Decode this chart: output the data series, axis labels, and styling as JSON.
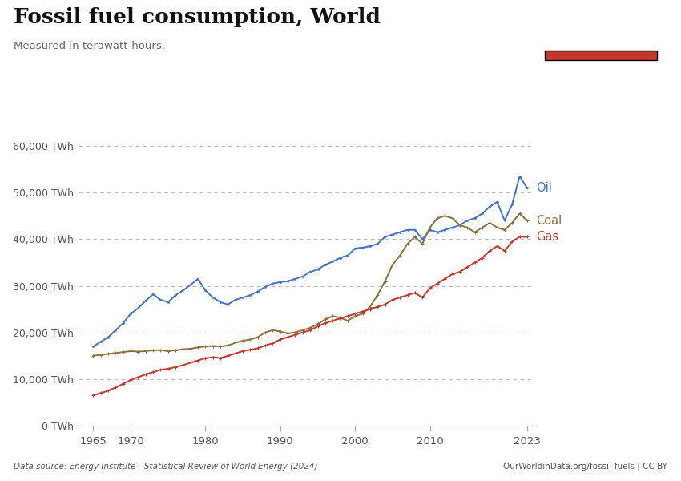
{
  "title": "Fossil fuel consumption, World",
  "subtitle": "Measured in terawatt-hours.",
  "datasource": "Data source: Energy Institute - Statistical Review of World Energy (2024)",
  "url": "OurWorldinData.org/fossil-fuels | CC BY",
  "logo_bg": "#1a3561",
  "logo_red": "#c0392b",
  "yticks": [
    0,
    10000,
    20000,
    30000,
    40000,
    50000,
    60000
  ],
  "ytick_labels": [
    "0 TWh",
    "10,000 TWh",
    "20,000 TWh",
    "30,000 TWh",
    "40,000 TWh",
    "50,000 TWh",
    "60,000 TWh"
  ],
  "xticks": [
    1965,
    1970,
    1980,
    1990,
    2000,
    2010,
    2023
  ],
  "oil_color": "#4472c4",
  "coal_color": "#8B7040",
  "gas_color": "#c0392b",
  "background_color": "#ffffff",
  "grid_color": "#bbbbbb",
  "oil": {
    "years": [
      1965,
      1966,
      1967,
      1968,
      1969,
      1970,
      1971,
      1972,
      1973,
      1974,
      1975,
      1976,
      1977,
      1978,
      1979,
      1980,
      1981,
      1982,
      1983,
      1984,
      1985,
      1986,
      1987,
      1988,
      1989,
      1990,
      1991,
      1992,
      1993,
      1994,
      1995,
      1996,
      1997,
      1998,
      1999,
      2000,
      2001,
      2002,
      2003,
      2004,
      2005,
      2006,
      2007,
      2008,
      2009,
      2010,
      2011,
      2012,
      2013,
      2014,
      2015,
      2016,
      2017,
      2018,
      2019,
      2020,
      2021,
      2022,
      2023
    ],
    "values": [
      17000,
      18000,
      19000,
      20500,
      22000,
      24000,
      25200,
      26800,
      28200,
      27000,
      26500,
      28000,
      29000,
      30200,
      31500,
      29000,
      27500,
      26500,
      26000,
      27000,
      27500,
      28000,
      28800,
      29800,
      30500,
      30800,
      31000,
      31500,
      32000,
      33000,
      33500,
      34500,
      35200,
      36000,
      36500,
      38000,
      38200,
      38500,
      39000,
      40500,
      41000,
      41500,
      42000,
      42000,
      40000,
      42000,
      41500,
      42000,
      42500,
      43000,
      44000,
      44500,
      45500,
      47000,
      48000,
      44000,
      47500,
      53500,
      51000
    ]
  },
  "coal": {
    "years": [
      1965,
      1966,
      1967,
      1968,
      1969,
      1970,
      1971,
      1972,
      1973,
      1974,
      1975,
      1976,
      1977,
      1978,
      1979,
      1980,
      1981,
      1982,
      1983,
      1984,
      1985,
      1986,
      1987,
      1988,
      1989,
      1990,
      1991,
      1992,
      1993,
      1994,
      1995,
      1996,
      1997,
      1998,
      1999,
      2000,
      2001,
      2002,
      2003,
      2004,
      2005,
      2006,
      2007,
      2008,
      2009,
      2010,
      2011,
      2012,
      2013,
      2014,
      2015,
      2016,
      2017,
      2018,
      2019,
      2020,
      2021,
      2022,
      2023
    ],
    "values": [
      15000,
      15200,
      15400,
      15600,
      15800,
      16000,
      15900,
      16000,
      16200,
      16200,
      16000,
      16200,
      16400,
      16500,
      16800,
      17000,
      17100,
      17000,
      17200,
      17800,
      18200,
      18500,
      19000,
      20000,
      20500,
      20200,
      19800,
      20000,
      20500,
      21000,
      21800,
      22800,
      23500,
      23200,
      22500,
      23500,
      24000,
      25500,
      28000,
      31000,
      34500,
      36500,
      39000,
      40500,
      39000,
      42500,
      44500,
      45000,
      44500,
      43000,
      42500,
      41500,
      42500,
      43500,
      42500,
      42000,
      43500,
      45500,
      44000
    ]
  },
  "gas": {
    "years": [
      1965,
      1966,
      1967,
      1968,
      1969,
      1970,
      1971,
      1972,
      1973,
      1974,
      1975,
      1976,
      1977,
      1978,
      1979,
      1980,
      1981,
      1982,
      1983,
      1984,
      1985,
      1986,
      1987,
      1988,
      1989,
      1990,
      1991,
      1992,
      1993,
      1994,
      1995,
      1996,
      1997,
      1998,
      1999,
      2000,
      2001,
      2002,
      2003,
      2004,
      2005,
      2006,
      2007,
      2008,
      2009,
      2010,
      2011,
      2012,
      2013,
      2014,
      2015,
      2016,
      2017,
      2018,
      2019,
      2020,
      2021,
      2022,
      2023
    ],
    "values": [
      6500,
      7000,
      7500,
      8200,
      9000,
      9800,
      10400,
      11000,
      11500,
      12000,
      12200,
      12600,
      13000,
      13500,
      14000,
      14500,
      14700,
      14500,
      15000,
      15500,
      16000,
      16300,
      16600,
      17200,
      17700,
      18500,
      19000,
      19500,
      20000,
      20500,
      21300,
      22000,
      22500,
      23000,
      23500,
      24000,
      24500,
      25000,
      25500,
      26000,
      27000,
      27500,
      28000,
      28500,
      27500,
      29500,
      30500,
      31500,
      32500,
      33000,
      34000,
      35000,
      36000,
      37500,
      38500,
      37500,
      39500,
      40500,
      40500
    ]
  }
}
